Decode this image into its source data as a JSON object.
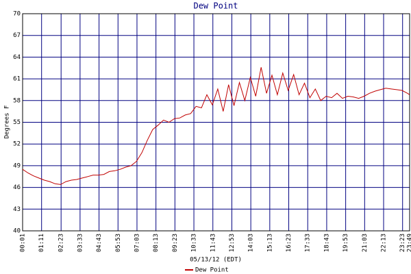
{
  "chart_data": {
    "type": "line",
    "title": "Dew Point",
    "ylabel": "Degrees F",
    "xlabel": "05/13/12 (EDT)",
    "x": [
      "00:01",
      "00:21",
      "00:41",
      "01:01",
      "01:21",
      "01:41",
      "02:01",
      "02:21",
      "02:41",
      "03:01",
      "03:21",
      "03:41",
      "04:01",
      "04:21",
      "04:41",
      "05:01",
      "05:21",
      "05:41",
      "06:01",
      "06:21",
      "06:41",
      "07:01",
      "07:21",
      "07:41",
      "08:01",
      "08:21",
      "08:41",
      "09:01",
      "09:21",
      "09:41",
      "10:01",
      "10:21",
      "10:41",
      "11:01",
      "11:21",
      "11:41",
      "12:01",
      "12:21",
      "12:41",
      "13:01",
      "13:21",
      "13:41",
      "14:01",
      "14:21",
      "14:41",
      "15:01",
      "15:21",
      "15:41",
      "16:01",
      "16:21",
      "16:41",
      "17:01",
      "17:21",
      "17:41",
      "18:01",
      "18:21",
      "18:41",
      "19:01",
      "19:21",
      "19:41",
      "20:01",
      "20:21",
      "20:41",
      "21:01",
      "21:21",
      "21:41",
      "22:01",
      "22:21",
      "22:41",
      "23:01",
      "23:21",
      "23:41",
      "23:49"
    ],
    "series": [
      {
        "name": "Dew Point",
        "color": "#c00000",
        "values": [
          48.5,
          48.0,
          47.6,
          47.3,
          47.0,
          46.8,
          46.5,
          46.4,
          46.8,
          47.0,
          47.1,
          47.3,
          47.5,
          47.7,
          47.7,
          47.8,
          48.2,
          48.3,
          48.5,
          48.8,
          49.0,
          49.6,
          50.8,
          52.5,
          54.0,
          54.6,
          55.3,
          55.0,
          55.5,
          55.6,
          56.0,
          56.2,
          57.2,
          57.0,
          58.8,
          57.4,
          59.6,
          56.5,
          60.2,
          57.3,
          60.5,
          58.0,
          61.2,
          58.6,
          62.6,
          59.0,
          61.5,
          58.8,
          61.8,
          59.4,
          61.6,
          58.8,
          60.4,
          58.4,
          59.6,
          58.0,
          58.6,
          58.4,
          59.0,
          58.3,
          58.6,
          58.5,
          58.3,
          58.6,
          59.0,
          59.3,
          59.5,
          59.7,
          59.6,
          59.5,
          59.4,
          59.0,
          58.8
        ]
      }
    ],
    "xlim": [
      "00:01",
      "23:49"
    ],
    "xticks": [
      "00:01",
      "01:11",
      "02:23",
      "03:33",
      "04:43",
      "05:53",
      "07:03",
      "08:13",
      "09:23",
      "10:33",
      "11:43",
      "12:53",
      "14:03",
      "15:13",
      "16:23",
      "17:33",
      "18:43",
      "19:53",
      "21:03",
      "22:13",
      "23:23",
      "23:49"
    ],
    "ylim": [
      40,
      70
    ],
    "yticks": [
      40,
      43,
      46,
      49,
      52,
      55,
      58,
      61,
      64,
      67,
      70
    ],
    "grid": true,
    "grid_color": "#000080"
  }
}
